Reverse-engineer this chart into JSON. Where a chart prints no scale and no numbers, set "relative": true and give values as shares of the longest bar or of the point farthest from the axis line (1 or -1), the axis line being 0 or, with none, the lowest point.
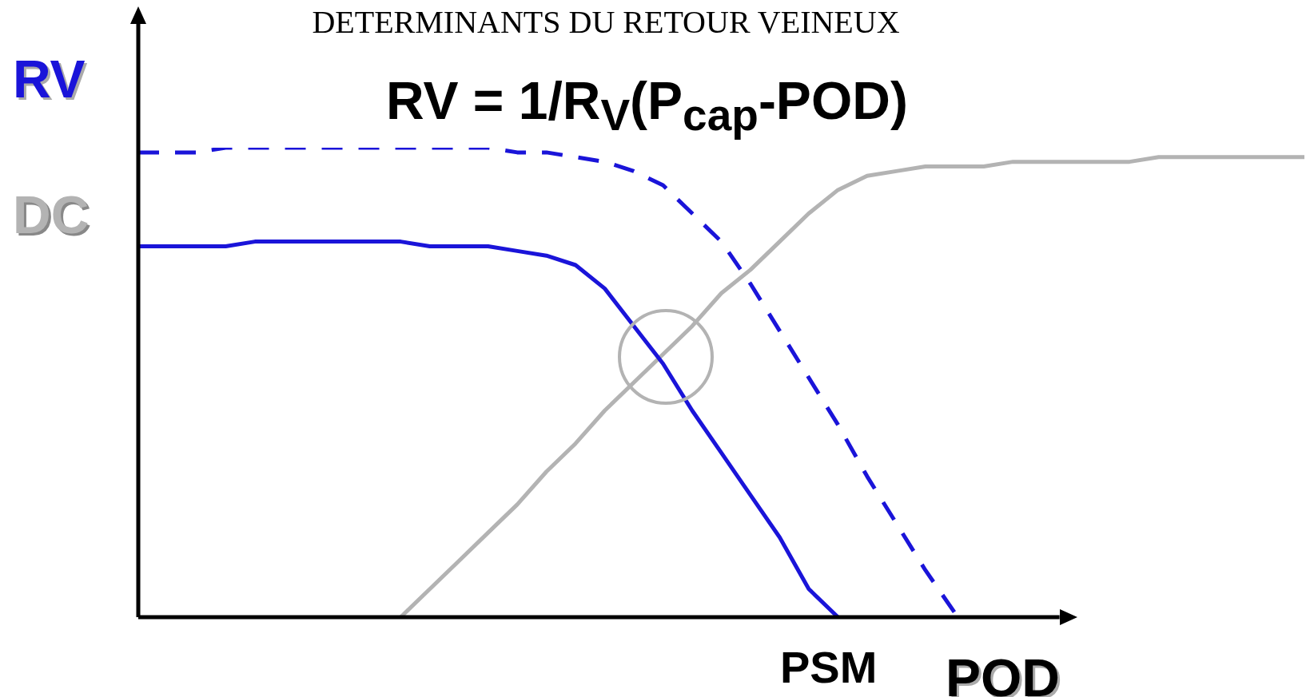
{
  "chart_data": {
    "type": "line",
    "relative": true,
    "title": "DETERMINANTS DU RETOUR VEINEUX",
    "ylabel": "RV",
    "xlabel": "POD",
    "annotations": [
      "RV = 1/R$_{V}$(P$_{cap}$-POD)",
      "PSM"
    ],
    "categories": [
      null,
      null,
      null,
      null,
      null,
      null,
      null,
      null,
      null,
      null,
      null,
      null,
      null,
      null,
      null,
      null,
      null,
      null,
      null,
      null,
      null,
      null,
      null,
      null,
      null,
      null,
      null,
      null,
      null,
      null,
      null,
      null,
      null,
      null,
      null,
      null,
      null,
      null,
      null,
      null,
      null
    ],
    "series": [
      {
        "color": "#1a14d9",
        "line_style": "dashed",
        "values": [
          0.99,
          0.99,
          0.99,
          1.0,
          1.0,
          1.0,
          1.0,
          1.0,
          1.0,
          1.0,
          1.0,
          1.0,
          1.0,
          0.99,
          0.99,
          0.98,
          0.97,
          0.95,
          0.92,
          0.86,
          0.8,
          0.71,
          0.61,
          0.51,
          0.41,
          0.3,
          0.2,
          0.1,
          0.01,
          null,
          null,
          null,
          null,
          null,
          null,
          null,
          null,
          null,
          null,
          null,
          null
        ]
      },
      {
        "color": "#1a14d9",
        "line_style": "solid",
        "values": [
          0.79,
          0.79,
          0.79,
          0.79,
          0.8,
          0.8,
          0.8,
          0.8,
          0.8,
          0.8,
          0.79,
          0.79,
          0.79,
          0.78,
          0.77,
          0.75,
          0.7,
          0.62,
          0.54,
          0.44,
          0.35,
          0.26,
          0.17,
          0.06,
          0,
          null,
          null,
          null,
          null,
          null,
          null,
          null,
          null,
          null,
          null,
          null,
          null,
          null,
          null,
          null,
          null
        ]
      },
      {
        "name": "DC",
        "color": "#b3b3b3",
        "line_style": "solid",
        "values": [
          null,
          null,
          null,
          null,
          null,
          null,
          null,
          null,
          null,
          0,
          0.06,
          0.12,
          0.18,
          0.24,
          0.31,
          0.37,
          0.44,
          0.5,
          0.56,
          0.62,
          0.69,
          0.74,
          0.8,
          0.86,
          0.91,
          0.94,
          0.95,
          0.96,
          0.96,
          0.96,
          0.97,
          0.97,
          0.97,
          0.97,
          0.97,
          0.98,
          0.98,
          0.98,
          0.98,
          0.98,
          0.98
        ]
      }
    ]
  }
}
